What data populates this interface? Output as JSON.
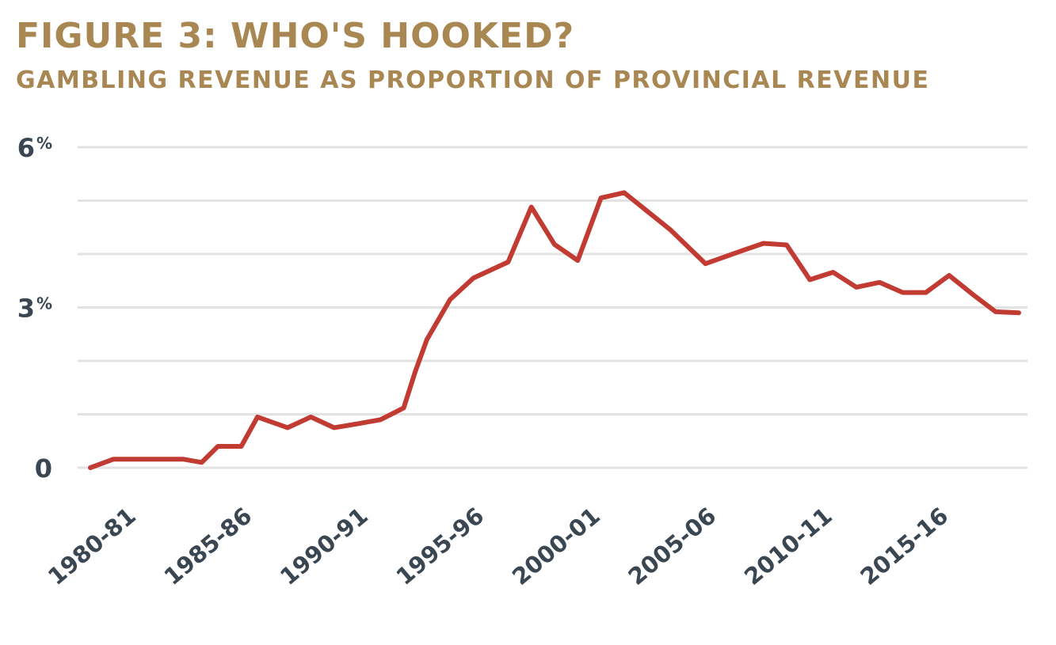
{
  "chart_data": {
    "type": "line",
    "title": "FIGURE 3: WHO'S HOOKED?",
    "subtitle": "GAMBLING REVENUE AS PROPORTION OF PROVINCIAL REVENUE",
    "xlabel": "",
    "ylabel": "",
    "ylim": [
      0,
      6
    ],
    "y_ticks": [
      {
        "value": 6,
        "num": "6",
        "unit": "%"
      },
      {
        "value": 3,
        "num": "3",
        "unit": "%"
      },
      {
        "value": 0,
        "num": "0",
        "unit": ""
      }
    ],
    "gridlines": [
      0,
      1,
      2,
      3,
      4,
      5,
      6
    ],
    "x_tick_labels": [
      {
        "label": "1980-81",
        "index": 1
      },
      {
        "label": "1985-86",
        "index": 6
      },
      {
        "label": "1990-91",
        "index": 11
      },
      {
        "label": "1995-96",
        "index": 16
      },
      {
        "label": "2000-01",
        "index": 21
      },
      {
        "label": "2005-06",
        "index": 26
      },
      {
        "label": "2010-11",
        "index": 31
      },
      {
        "label": "2015-16",
        "index": 36
      }
    ],
    "series": [
      {
        "color": "#c23b33",
        "points": [
          [
            0,
            0.0
          ],
          [
            1,
            0.16
          ],
          [
            2,
            0.16
          ],
          [
            3,
            0.16
          ],
          [
            4,
            0.16
          ],
          [
            4.8,
            0.1
          ],
          [
            5.5,
            0.4
          ],
          [
            6.5,
            0.4
          ],
          [
            7.2,
            0.95
          ],
          [
            8.5,
            0.75
          ],
          [
            9.5,
            0.95
          ],
          [
            10.5,
            0.75
          ],
          [
            11.5,
            0.82
          ],
          [
            12.5,
            0.9
          ],
          [
            13.5,
            1.12
          ],
          [
            14,
            1.8
          ],
          [
            14.5,
            2.4
          ],
          [
            15.5,
            3.15
          ],
          [
            16.5,
            3.55
          ],
          [
            18,
            3.85
          ],
          [
            19,
            4.88
          ],
          [
            20,
            4.18
          ],
          [
            21,
            3.88
          ],
          [
            22,
            5.05
          ],
          [
            23,
            5.15
          ],
          [
            24,
            4.8
          ],
          [
            25,
            4.45
          ],
          [
            26.5,
            3.82
          ],
          [
            28,
            4.05
          ],
          [
            29,
            4.2
          ],
          [
            30,
            4.17
          ],
          [
            31,
            3.52
          ],
          [
            32,
            3.66
          ],
          [
            33,
            3.38
          ],
          [
            34,
            3.47
          ],
          [
            35,
            3.28
          ],
          [
            36,
            3.28
          ],
          [
            37,
            3.6
          ],
          [
            38,
            3.25
          ],
          [
            39,
            2.92
          ],
          [
            40,
            2.9
          ]
        ]
      }
    ]
  }
}
